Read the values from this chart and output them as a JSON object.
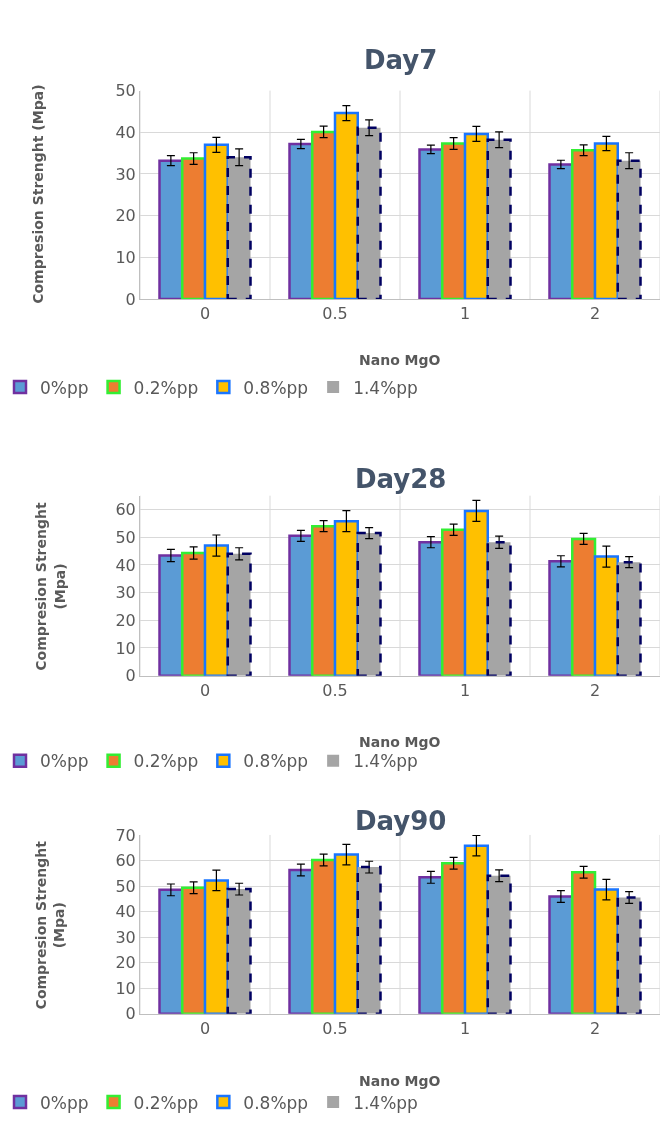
{
  "chart_data": [
    {
      "type": "bar",
      "title": "Day7",
      "xlabel": "Nano MgO",
      "ylabel": "Compresion Strenght (Mpa)",
      "categories": [
        "0",
        "0.5",
        "1",
        "2"
      ],
      "ylim": [
        0,
        50
      ],
      "yticks": [
        0,
        10,
        20,
        30,
        40,
        50
      ],
      "grid": true,
      "legend": "bottom",
      "series": [
        {
          "name": "0%pp",
          "color": "#5b9bd5",
          "values": [
            33.2,
            37.2,
            35.9,
            32.3
          ],
          "errors": [
            1.2,
            1.1,
            1.0,
            1.0
          ]
        },
        {
          "name": "0.2%pp",
          "color": "#ed7d31",
          "values": [
            33.7,
            40.1,
            37.3,
            35.7
          ],
          "errors": [
            1.4,
            1.4,
            1.4,
            1.3
          ]
        },
        {
          "name": "0.8%pp",
          "color": "#ffc000",
          "values": [
            37.0,
            44.6,
            39.6,
            37.3
          ],
          "errors": [
            1.8,
            1.8,
            1.8,
            1.7
          ]
        },
        {
          "name": "1.4%pp",
          "color": "#a5a5a5",
          "line_style": "dashed",
          "values": [
            34.0,
            41.1,
            38.2,
            33.2
          ],
          "errors": [
            2.0,
            1.9,
            1.9,
            1.9
          ]
        }
      ]
    },
    {
      "type": "bar",
      "title": "Day28",
      "xlabel": "Nano MgO",
      "ylabel": "Compresion Strenght (Mpa)",
      "categories": [
        "0",
        "0.5",
        "1",
        "2"
      ],
      "ylim": [
        0,
        65
      ],
      "yticks": [
        0,
        10,
        20,
        30,
        40,
        50,
        60
      ],
      "grid": true,
      "legend": "bottom",
      "series": [
        {
          "name": "0%pp",
          "color": "#5b9bd5",
          "values": [
            43.4,
            50.5,
            48.2,
            41.3
          ],
          "errors": [
            2.2,
            2.0,
            2.0,
            2.0
          ]
        },
        {
          "name": "0.2%pp",
          "color": "#ed7d31",
          "values": [
            44.3,
            54.0,
            52.7,
            49.4
          ],
          "errors": [
            2.2,
            2.0,
            2.0,
            2.0
          ]
        },
        {
          "name": "0.8%pp",
          "color": "#ffc000",
          "values": [
            47.0,
            55.8,
            59.5,
            43.0
          ],
          "errors": [
            3.8,
            3.8,
            3.8,
            3.8
          ]
        },
        {
          "name": "1.4%pp",
          "color": "#a5a5a5",
          "line_style": "dashed",
          "values": [
            44.0,
            51.5,
            48.2,
            41.0
          ],
          "errors": [
            2.2,
            2.0,
            2.2,
            2.0
          ]
        }
      ]
    },
    {
      "type": "bar",
      "title": "Day90",
      "xlabel": "Nano MgO",
      "ylabel": "Compresion Strenght (Mpa)",
      "categories": [
        "0",
        "0.5",
        "1",
        "2"
      ],
      "ylim": [
        0,
        70
      ],
      "yticks": [
        0,
        10,
        20,
        30,
        40,
        50,
        60,
        70
      ],
      "grid": true,
      "legend": "bottom",
      "series": [
        {
          "name": "0%pp",
          "color": "#5b9bd5",
          "values": [
            48.5,
            56.3,
            53.4,
            45.9
          ],
          "errors": [
            2.3,
            2.3,
            2.3,
            2.3
          ]
        },
        {
          "name": "0.2%pp",
          "color": "#ed7d31",
          "values": [
            49.3,
            60.2,
            58.9,
            55.4
          ],
          "errors": [
            2.3,
            2.3,
            2.3,
            2.3
          ]
        },
        {
          "name": "0.8%pp",
          "color": "#ffc000",
          "values": [
            52.2,
            62.3,
            65.8,
            48.6
          ],
          "errors": [
            4.0,
            4.0,
            4.0,
            4.0
          ]
        },
        {
          "name": "1.4%pp",
          "color": "#a5a5a5",
          "line_style": "dashed",
          "values": [
            48.8,
            57.4,
            54.0,
            45.5
          ],
          "errors": [
            2.3,
            2.3,
            2.3,
            2.3
          ]
        }
      ]
    }
  ]
}
